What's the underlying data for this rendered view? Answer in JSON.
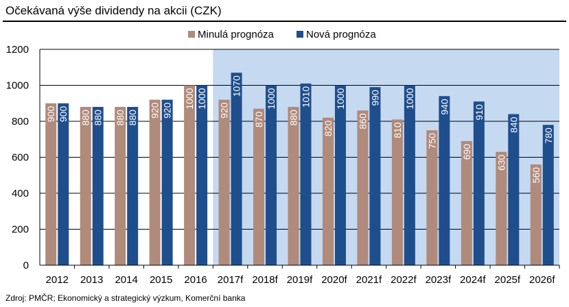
{
  "title": "Očekávaná výše dividendy na akcii (CZK)",
  "source": "Zdroj: PMČR; Ekonomický a strategický výzkum, Komerční banka",
  "chart_data": {
    "type": "bar",
    "categories": [
      "2012",
      "2013",
      "2014",
      "2015",
      "2016",
      "2017f",
      "2018f",
      "2019f",
      "2020f",
      "2021f",
      "2022f",
      "2023f",
      "2024f",
      "2025f",
      "2026f"
    ],
    "series": [
      {
        "name": "Minulá prognóza",
        "color": "#b08a7a",
        "values": [
          900,
          880,
          880,
          920,
          1000,
          920,
          870,
          880,
          820,
          860,
          810,
          750,
          690,
          630,
          560
        ]
      },
      {
        "name": "Nová prognóza",
        "color": "#1f4e8c",
        "values": [
          900,
          880,
          880,
          920,
          1000,
          1070,
          1000,
          1010,
          1000,
          990,
          1000,
          940,
          910,
          840,
          780
        ]
      }
    ],
    "yticks": [
      "0",
      "200",
      "400",
      "600",
      "800",
      "1000",
      "1200"
    ],
    "ylim": [
      0,
      1200
    ],
    "grid": true,
    "legend_position": "top-center",
    "forecast_highlight": {
      "from_category": "2017f",
      "color": "#c5d9f1"
    },
    "bar_label_color": "#ffffff"
  }
}
